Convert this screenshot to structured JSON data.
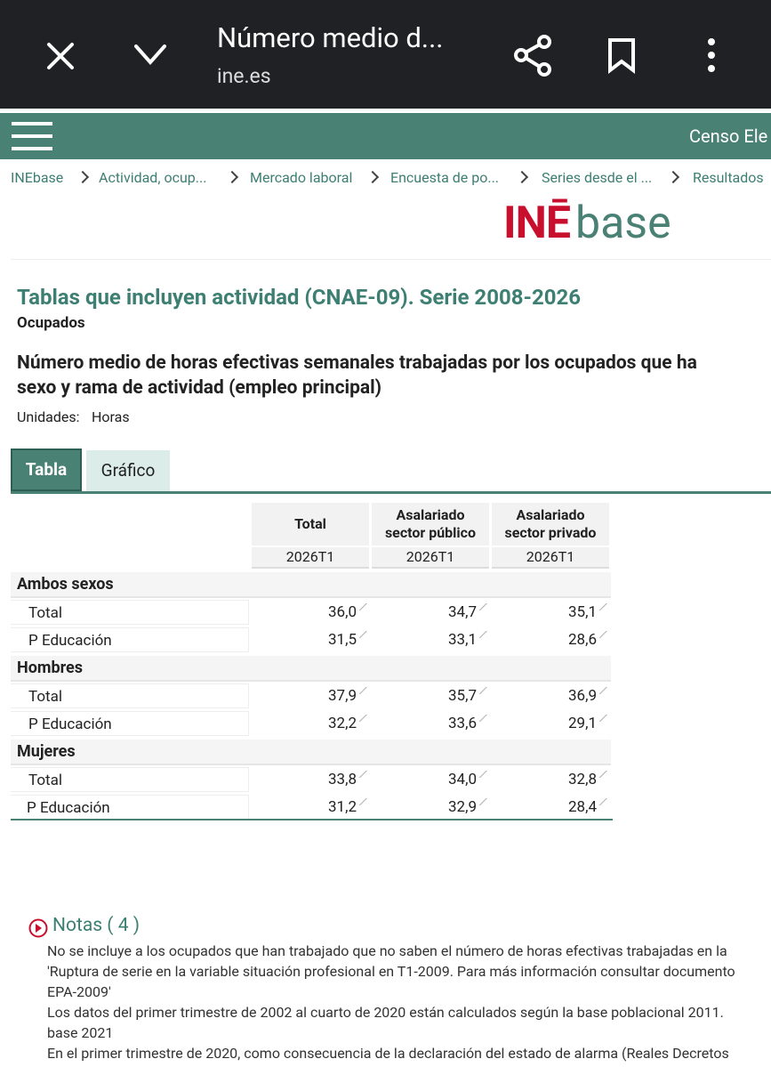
{
  "browser": {
    "title": "Número medio d...",
    "url": "ine.es"
  },
  "nav": {
    "menu_right": "Censo Ele"
  },
  "breadcrumb": [
    "INEbase",
    "Actividad, ocup...",
    "Mercado laboral",
    "Encuesta de po...",
    "Series desde el ...",
    "Resultados"
  ],
  "logo": {
    "ine": "INĒ",
    "base": "base"
  },
  "heading": {
    "title": "Tablas que incluyen actividad (CNAE-09). Serie 2008-2026",
    "subtitle": "Ocupados",
    "table_title": [
      "Número medio de horas efectivas semanales trabajadas por los ocupados que ha",
      "sexo y rama de actividad (empleo principal)"
    ],
    "units_label": "Unidades:",
    "units": "Horas"
  },
  "tabs": [
    "Tabla",
    "Gráfico"
  ],
  "table": {
    "columns": [
      "Total",
      "Asalariado sector público",
      "Asalariado sector privado"
    ],
    "periods": [
      "2026T1",
      "2026T1",
      "2026T1"
    ],
    "groups": [
      {
        "name": "Ambos sexos",
        "rows": [
          {
            "label": "Total",
            "values": [
              "36,0",
              "34,7",
              "35,1"
            ]
          },
          {
            "label": "P Educación",
            "values": [
              "31,5",
              "33,1",
              "28,6"
            ]
          }
        ]
      },
      {
        "name": "Hombres",
        "rows": [
          {
            "label": "Total",
            "values": [
              "37,9",
              "35,7",
              "36,9"
            ]
          },
          {
            "label": "P Educación",
            "values": [
              "32,2",
              "33,6",
              "29,1"
            ]
          }
        ]
      },
      {
        "name": "Mujeres",
        "rows": [
          {
            "label": "Total",
            "values": [
              "33,8",
              "34,0",
              "32,8"
            ]
          },
          {
            "label": "P Educación",
            "values": [
              "31,2",
              "32,9",
              "28,4"
            ]
          }
        ]
      }
    ]
  },
  "notes": {
    "title": "Notas ( 4 )",
    "items": [
      [
        "No se incluye a los ocupados que han trabajado que no saben el número de horas efectivas trabajadas en la"
      ],
      [
        "'Ruptura de serie en la variable situación profesional en T1-2009. Para más información consultar documento",
        "EPA-2009'"
      ],
      [
        "Los datos del primer trimestre de 2002 al cuarto de 2020 están calculados según la base poblacional 2011.",
        "base 2021"
      ],
      [
        "En el primer trimestre de 2020, como consecuencia de la declaración del estado de alarma (Reales Decretos"
      ]
    ]
  }
}
